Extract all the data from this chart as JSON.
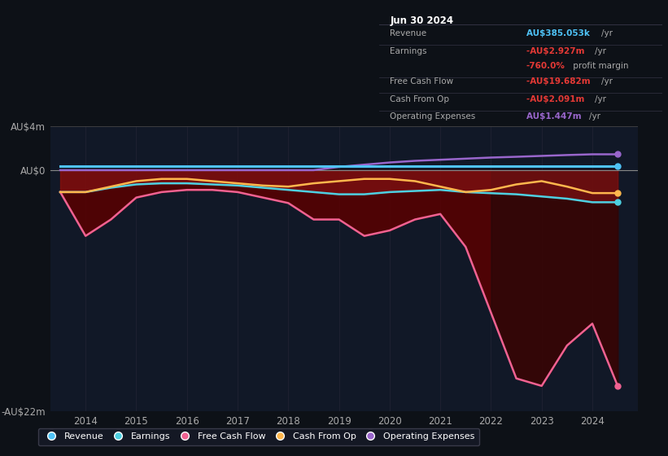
{
  "bg_color": "#0d1117",
  "plot_bg": "#111827",
  "revenue_color": "#4fc3f7",
  "earnings_color": "#4dd0e1",
  "free_cash_flow_color": "#f06292",
  "cash_from_op_color": "#ffb74d",
  "operating_expenses_color": "#9966cc",
  "fill_dark": "#4a0000",
  "fill_mid": "#7a1010",
  "ylim": [
    -22,
    4
  ],
  "yticks": [
    4,
    0,
    -22
  ],
  "ytick_labels": [
    "AU$4m",
    "AU$0",
    "-AU$22m"
  ],
  "xlim_left": 2013.3,
  "xlim_right": 2024.9,
  "xticks": [
    2014,
    2015,
    2016,
    2017,
    2018,
    2019,
    2020,
    2021,
    2022,
    2023,
    2024
  ],
  "info_title": "Jun 30 2024",
  "info_rows": [
    {
      "label": "Revenue",
      "value": "AU$385.053k /yr",
      "value_color": "#4fc3f7",
      "separator": true
    },
    {
      "label": "Earnings",
      "value": "-AU$2.927m /yr",
      "value_color": "#e53935",
      "separator": false
    },
    {
      "label": "",
      "value": "-760.0% profit margin",
      "value_color": "#e53935",
      "separator": true
    },
    {
      "label": "Free Cash Flow",
      "value": "-AU$19.682m /yr",
      "value_color": "#e53935",
      "separator": true
    },
    {
      "label": "Cash From Op",
      "value": "-AU$2.091m /yr",
      "value_color": "#e53935",
      "separator": true
    },
    {
      "label": "Operating Expenses",
      "value": "AU$1.447m /yr",
      "value_color": "#9966cc",
      "separator": false
    }
  ],
  "legend_items": [
    {
      "label": "Revenue",
      "color": "#4fc3f7"
    },
    {
      "label": "Earnings",
      "color": "#4dd0e1"
    },
    {
      "label": "Free Cash Flow",
      "color": "#f06292"
    },
    {
      "label": "Cash From Op",
      "color": "#ffb74d"
    },
    {
      "label": "Operating Expenses",
      "color": "#9966cc"
    }
  ],
  "years": [
    2013.5,
    2014.0,
    2014.5,
    2015.0,
    2015.5,
    2016.0,
    2016.5,
    2017.0,
    2017.5,
    2018.0,
    2018.5,
    2019.0,
    2019.5,
    2020.0,
    2020.5,
    2021.0,
    2021.5,
    2022.0,
    2022.5,
    2023.0,
    2023.5,
    2024.0,
    2024.5
  ],
  "revenue": [
    0.385,
    0.385,
    0.385,
    0.385,
    0.385,
    0.385,
    0.385,
    0.385,
    0.385,
    0.385,
    0.385,
    0.385,
    0.385,
    0.385,
    0.385,
    0.385,
    0.385,
    0.385,
    0.385,
    0.385,
    0.385,
    0.385,
    0.385
  ],
  "earnings": [
    -2.0,
    -2.0,
    -1.6,
    -1.3,
    -1.2,
    -1.2,
    -1.3,
    -1.4,
    -1.6,
    -1.8,
    -2.0,
    -2.2,
    -2.2,
    -2.0,
    -1.9,
    -1.8,
    -2.0,
    -2.1,
    -2.2,
    -2.4,
    -2.6,
    -2.927,
    -2.927
  ],
  "free_cash_flow": [
    -2.0,
    -6.0,
    -4.5,
    -2.5,
    -2.0,
    -1.8,
    -1.8,
    -2.0,
    -2.5,
    -3.0,
    -4.5,
    -4.5,
    -6.0,
    -5.5,
    -4.5,
    -4.0,
    -7.0,
    -13.0,
    -19.0,
    -19.682,
    -16.0,
    -14.0,
    -19.682
  ],
  "cash_from_op": [
    -2.0,
    -2.0,
    -1.5,
    -1.0,
    -0.8,
    -0.8,
    -1.0,
    -1.2,
    -1.4,
    -1.5,
    -1.2,
    -1.0,
    -0.8,
    -0.8,
    -1.0,
    -1.5,
    -2.0,
    -1.8,
    -1.3,
    -1.0,
    -1.5,
    -2.091,
    -2.091
  ],
  "operating_expenses": [
    0.0,
    0.0,
    0.0,
    0.0,
    0.0,
    0.0,
    0.0,
    0.0,
    0.0,
    0.0,
    0.0,
    0.3,
    0.5,
    0.7,
    0.85,
    0.95,
    1.05,
    1.15,
    1.22,
    1.3,
    1.38,
    1.447,
    1.447
  ]
}
